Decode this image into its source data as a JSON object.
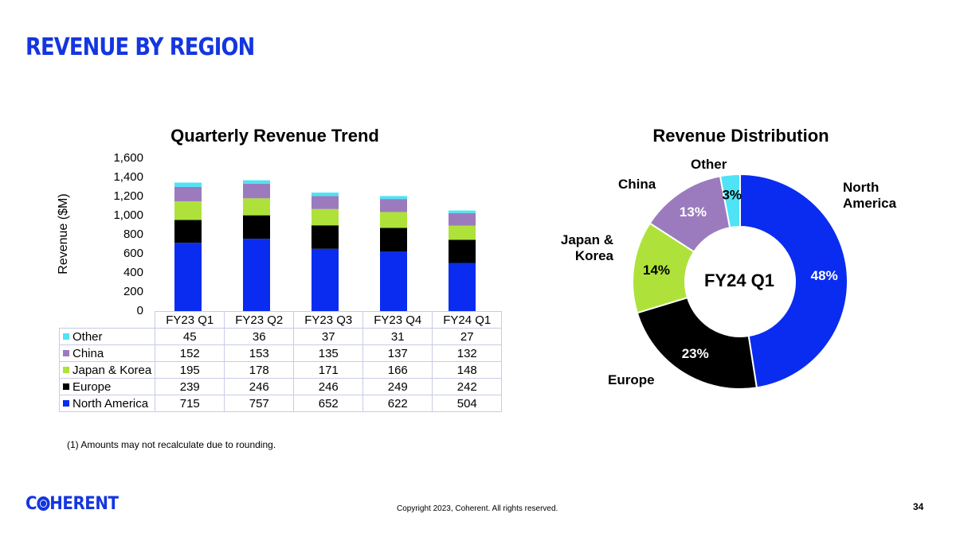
{
  "page": {
    "title": "REVENUE BY REGION",
    "footnote": "(1)  Amounts may not recalculate due to rounding.",
    "copyright": "Copyright 2023, Coherent. All rights reserved.",
    "page_number": "34",
    "logo_text_left": "C",
    "logo_text_right": "HERENT"
  },
  "colors": {
    "north_america": "#0a2cf0",
    "europe": "#000000",
    "japan_korea": "#aee23a",
    "china": "#9b7bbd",
    "other": "#4fe3f5"
  },
  "chart_data": [
    {
      "type": "bar",
      "stacked": true,
      "title": "Quarterly Revenue Trend",
      "ylabel": "Revenue ($M)",
      "ylim": [
        0,
        1600
      ],
      "yticks": [
        "0",
        "200",
        "400",
        "600",
        "800",
        "1,000",
        "1,200",
        "1,400",
        "1,600"
      ],
      "categories": [
        "FY23 Q1",
        "FY23 Q2",
        "FY23 Q3",
        "FY23 Q4",
        "FY24 Q1"
      ],
      "series": [
        {
          "name": "North America",
          "color": "#0a2cf0",
          "values": [
            715,
            757,
            652,
            622,
            504
          ]
        },
        {
          "name": "Europe",
          "color": "#000000",
          "values": [
            239,
            246,
            246,
            249,
            242
          ]
        },
        {
          "name": "Japan & Korea",
          "color": "#aee23a",
          "values": [
            195,
            178,
            171,
            166,
            148
          ]
        },
        {
          "name": "China",
          "color": "#9b7bbd",
          "values": [
            152,
            153,
            135,
            137,
            132
          ]
        },
        {
          "name": "Other",
          "color": "#4fe3f5",
          "values": [
            45,
            36,
            37,
            31,
            27
          ]
        }
      ],
      "table_rows": [
        {
          "name": "Other",
          "color": "#4fe3f5",
          "values": [
            "45",
            "36",
            "37",
            "31",
            "27"
          ]
        },
        {
          "name": "China",
          "color": "#9b7bbd",
          "values": [
            "152",
            "153",
            "135",
            "137",
            "132"
          ]
        },
        {
          "name": "Japan & Korea",
          "color": "#aee23a",
          "values": [
            "195",
            "178",
            "171",
            "166",
            "148"
          ]
        },
        {
          "name": "Europe",
          "color": "#000000",
          "values": [
            "239",
            "246",
            "246",
            "249",
            "242"
          ]
        },
        {
          "name": "North America",
          "color": "#0a2cf0",
          "values": [
            "715",
            "757",
            "652",
            "622",
            "504"
          ]
        }
      ]
    },
    {
      "type": "pie",
      "donut": true,
      "title": "Revenue Distribution",
      "center_label": "FY24 Q1",
      "slices": [
        {
          "name": "North America",
          "label": "North America",
          "value": 48,
          "pct": "48%",
          "color": "#0a2cf0",
          "pct_color": "#ffffff"
        },
        {
          "name": "Europe",
          "label": "Europe",
          "value": 23,
          "pct": "23%",
          "color": "#000000",
          "pct_color": "#ffffff"
        },
        {
          "name": "Japan & Korea",
          "label": "Japan & Korea",
          "value": 14,
          "pct": "14%",
          "color": "#aee23a",
          "pct_color": "#000000"
        },
        {
          "name": "China",
          "label": "China",
          "value": 13,
          "pct": "13%",
          "color": "#9b7bbd",
          "pct_color": "#ffffff"
        },
        {
          "name": "Other",
          "label": "Other",
          "value": 3,
          "pct": "3%",
          "color": "#4fe3f5",
          "pct_color": "#000000"
        }
      ]
    }
  ]
}
